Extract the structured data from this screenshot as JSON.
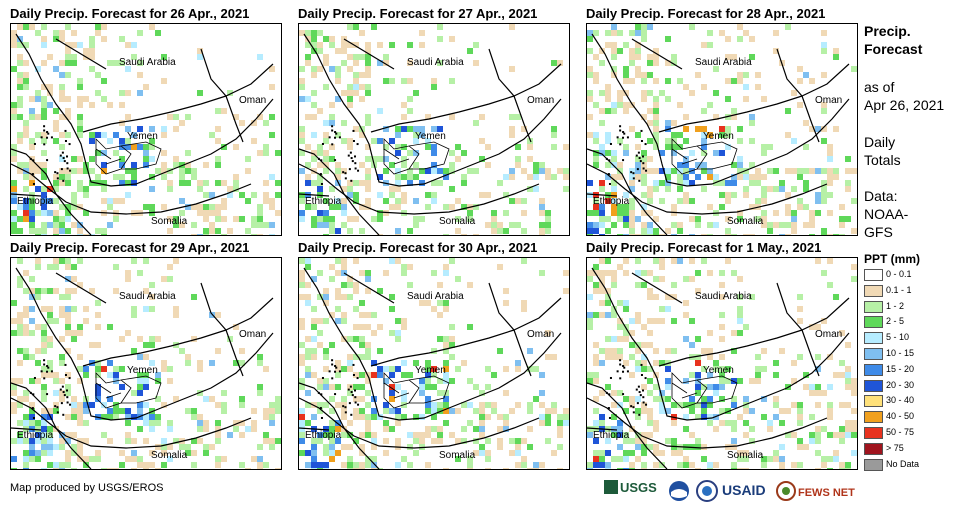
{
  "panels": [
    {
      "title": "Daily Precip. Forecast for 26 Apr., 2021",
      "rain_seed": 11,
      "coverage": 0.48,
      "heavy": 0.07
    },
    {
      "title": "Daily Precip. Forecast for 27 Apr., 2021",
      "rain_seed": 23,
      "coverage": 0.4,
      "heavy": 0.03
    },
    {
      "title": "Daily Precip. Forecast for 28 Apr., 2021",
      "rain_seed": 37,
      "coverage": 0.6,
      "heavy": 0.09
    },
    {
      "title": "Daily Precip. Forecast for 29 Apr., 2021",
      "rain_seed": 41,
      "coverage": 0.5,
      "heavy": 0.06
    },
    {
      "title": "Daily Precip. Forecast for 30 Apr., 2021",
      "rain_seed": 53,
      "coverage": 0.55,
      "heavy": 0.08
    },
    {
      "title": "Daily Precip. Forecast for 1 May., 2021",
      "rain_seed": 67,
      "coverage": 0.5,
      "heavy": 0.05
    }
  ],
  "country_labels": {
    "saudi": "Saudi Arabia",
    "oman": "Oman",
    "yemen": "Yemen",
    "ethiopia": "Ethiopia",
    "somalia": "Somalia"
  },
  "sidebar": {
    "title_line1": "Precip.",
    "title_line2": "Forecast",
    "asof_line1": "as of",
    "asof_line2": "Apr 26, 2021",
    "totals_line1": "Daily",
    "totals_line2": "Totals",
    "data_line1": "Data:",
    "data_line2": "NOAA-",
    "data_line3": "GFS"
  },
  "legend": {
    "title": "PPT (mm)",
    "items": [
      {
        "label": "0 - 0.1",
        "color": "#ffffff"
      },
      {
        "label": "0.1 - 1",
        "color": "#f0d9b5"
      },
      {
        "label": "1 - 2",
        "color": "#b6f0a6"
      },
      {
        "label": "2 - 5",
        "color": "#5fd85a"
      },
      {
        "label": "5 - 10",
        "color": "#b6ecff"
      },
      {
        "label": "10 - 15",
        "color": "#7fbff0"
      },
      {
        "label": "15 - 20",
        "color": "#3f8be8"
      },
      {
        "label": "20 - 30",
        "color": "#1f55d8"
      },
      {
        "label": "30 - 40",
        "color": "#ffe17a"
      },
      {
        "label": "40 - 50",
        "color": "#f0a01e"
      },
      {
        "label": "50 - 75",
        "color": "#e8321e"
      },
      {
        "label": "> 75",
        "color": "#a0141e"
      },
      {
        "label": "No Data",
        "color": "#9a9a9a"
      }
    ]
  },
  "credit": "Map produced by USGS/EROS",
  "logos": {
    "usgs": "USGS",
    "usaid": "USAID",
    "fewsnet": "FEWS NET"
  }
}
